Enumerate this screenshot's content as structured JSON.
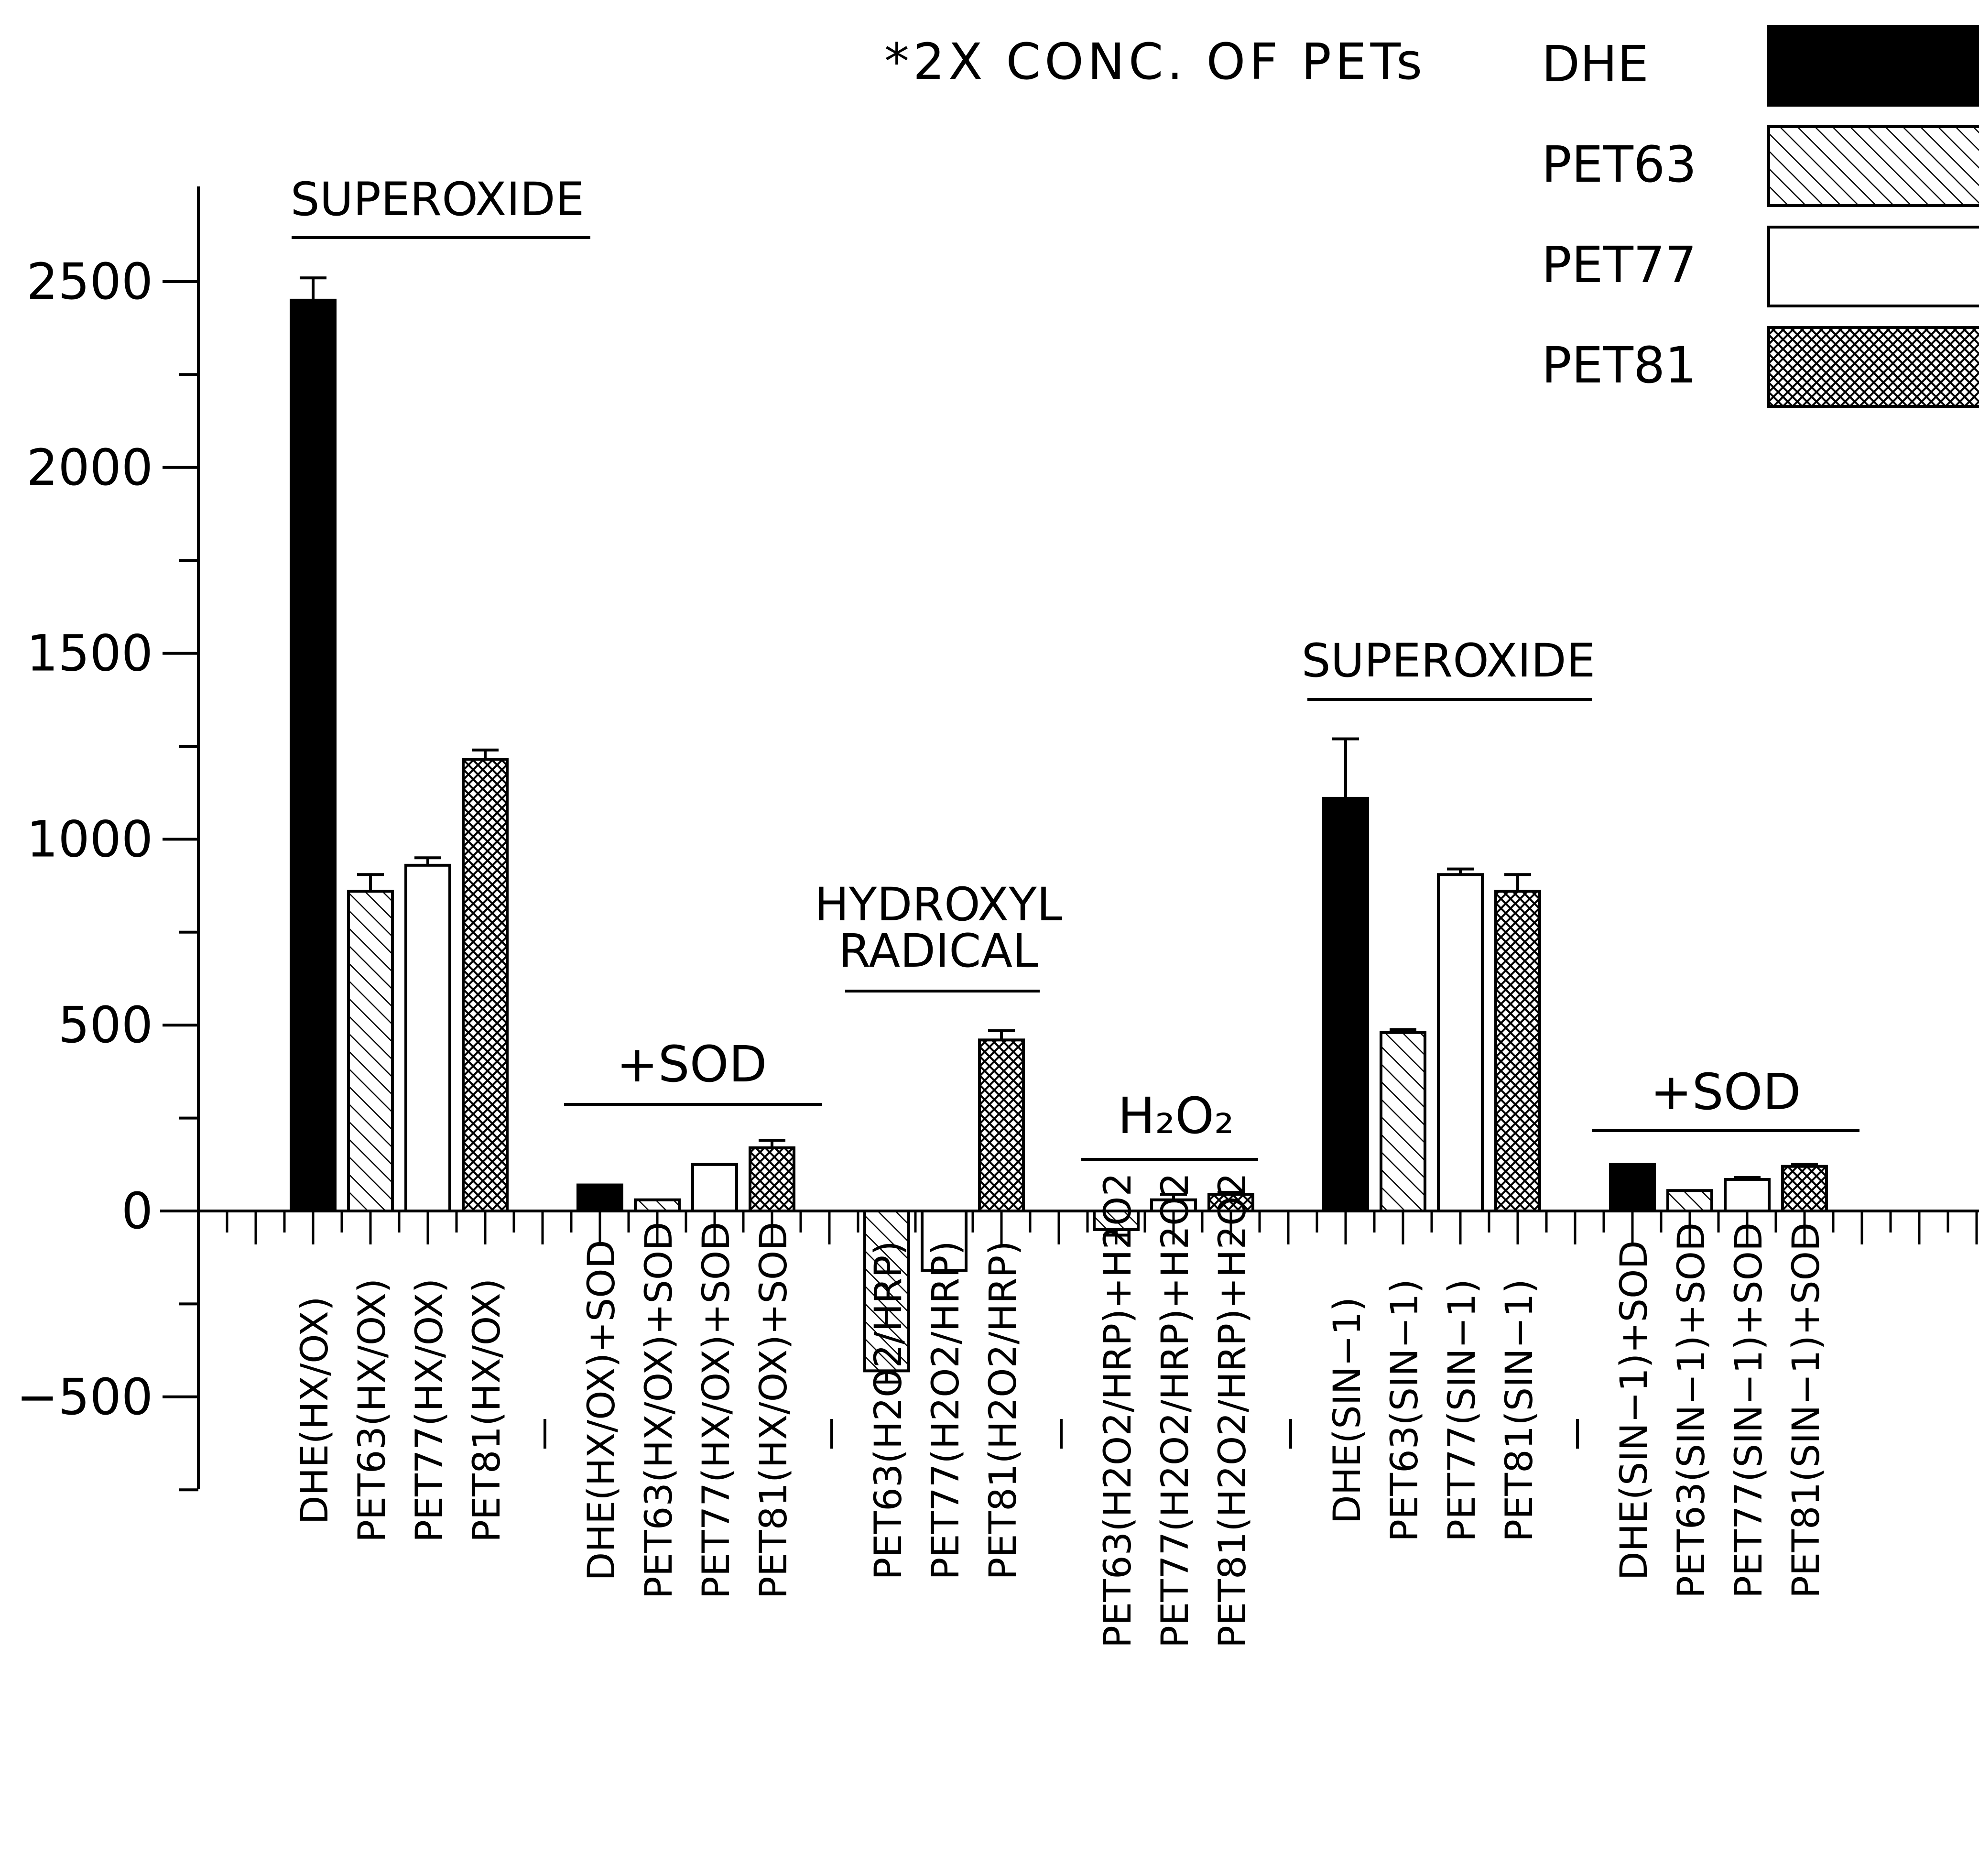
{
  "chart_data": {
    "type": "bar",
    "title": "",
    "footnote": "*2X CONC. OF PETs",
    "xlabel": "",
    "ylabel": "",
    "ylim": [
      -750,
      2750
    ],
    "yticks": [
      -500,
      0,
      500,
      1000,
      1500,
      2000,
      2500
    ],
    "ytick_labels": [
      "−500",
      "0",
      "500",
      "1000",
      "1500",
      "2000",
      "2500"
    ],
    "legend_position": "top-right",
    "series": [
      {
        "name": "DHE",
        "pattern": "solid-black"
      },
      {
        "name": "PET63",
        "pattern": "diagonal-hatch"
      },
      {
        "name": "PET77",
        "pattern": "open-white"
      },
      {
        "name": "PET81",
        "pattern": "crosshatch"
      }
    ],
    "bars": [
      {
        "label": "DHE(HX/OX)",
        "series": "DHE",
        "value": 2450,
        "error": 60
      },
      {
        "label": "PET63(HX/OX)",
        "series": "PET63",
        "value": 860,
        "error": 45
      },
      {
        "label": "PET77(HX/OX)",
        "series": "PET77",
        "value": 930,
        "error": 20
      },
      {
        "label": "PET81(HX/OX)",
        "series": "PET81",
        "value": 1215,
        "error": 25
      },
      {
        "label": "DHE(HX/OX)+SOD",
        "series": "DHE",
        "value": 70,
        "error": 0
      },
      {
        "label": "PET63(HX/OX)+SOD",
        "series": "PET63",
        "value": 30,
        "error": 0
      },
      {
        "label": "PET77(HX/OX)+SOD",
        "series": "PET77",
        "value": 125,
        "error": 0
      },
      {
        "label": "PET81(HX/OX)+SOD",
        "series": "PET81",
        "value": 170,
        "error": 20
      },
      {
        "label": "PET63(H2O2/HRP)",
        "series": "PET63",
        "value": -430,
        "error": 30
      },
      {
        "label": "PET77(H2O2/HRP)",
        "series": "PET77",
        "value": -160,
        "error": 0
      },
      {
        "label": "PET81(H2O2/HRP)",
        "series": "PET81",
        "value": 460,
        "error": 25
      },
      {
        "label": "PET63(H2O2/HRP)+H2O2",
        "series": "PET63",
        "value": -50,
        "error": 15
      },
      {
        "label": "PET77(H2O2/HRP)+H2O2",
        "series": "PET77",
        "value": 30,
        "error": 15
      },
      {
        "label": "PET81(H2O2/HRP)+H2O2",
        "series": "PET81",
        "value": 45,
        "error": 5
      },
      {
        "label": "DHE(SIN−1)",
        "series": "DHE",
        "value": 1110,
        "error": 160
      },
      {
        "label": "PET63(SIN−1)",
        "series": "PET63",
        "value": 480,
        "error": 8
      },
      {
        "label": "PET77(SIN−1)",
        "series": "PET77",
        "value": 905,
        "error": 15
      },
      {
        "label": "PET81(SIN−1)",
        "series": "PET81",
        "value": 860,
        "error": 45
      },
      {
        "label": "DHE(SIN−1)+SOD",
        "series": "DHE",
        "value": 125,
        "error": 0
      },
      {
        "label": "PET63(SIN−1)+SOD",
        "series": "PET63",
        "value": 55,
        "error": 0
      },
      {
        "label": "PET77(SIN−1)+SOD",
        "series": "PET77",
        "value": 85,
        "error": 5
      },
      {
        "label": "PET81(SIN−1)+SOD",
        "series": "PET81",
        "value": 120,
        "error": 5
      }
    ],
    "annotations": [
      {
        "text": "SUPEROXIDE"
      },
      {
        "text": "+SOD"
      },
      {
        "text": "HYDROXYL"
      },
      {
        "text": "RADICAL"
      },
      {
        "text": "H₂O₂"
      },
      {
        "text": "SUPEROXIDE"
      },
      {
        "text": "+SOD"
      }
    ]
  }
}
